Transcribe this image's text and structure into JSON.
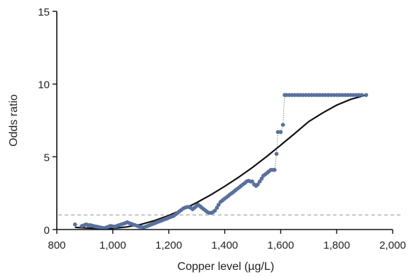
{
  "chart_data": {
    "type": "scatter",
    "title": "",
    "xlabel": "Copper level (µg/L)",
    "ylabel": "Odds ratio",
    "xlim": [
      800,
      2000
    ],
    "ylim": [
      0,
      15
    ],
    "x_ticks": [
      800,
      1000,
      1200,
      1400,
      1600,
      1800,
      2000
    ],
    "x_tick_labels": [
      "800",
      "1,000",
      "1,200",
      "1,400",
      "1,600",
      "1,800",
      "2,000"
    ],
    "y_ticks": [
      0,
      5,
      10,
      15
    ],
    "y_tick_labels": [
      "0",
      "5",
      "10",
      "15"
    ],
    "grid": false,
    "reference_line": {
      "y": 1,
      "style": "dashed",
      "color": "#b8b8b8"
    },
    "colors": {
      "points": "#5670a0",
      "fit": "#111111",
      "axis": "#111111"
    },
    "series": [
      {
        "type": "scatter",
        "points": [
          [
            865,
            0.35
          ],
          [
            890,
            0.25
          ],
          [
            898,
            0.3
          ],
          [
            905,
            0.35
          ],
          [
            912,
            0.3
          ],
          [
            918,
            0.3
          ],
          [
            924,
            0.28
          ],
          [
            930,
            0.25
          ],
          [
            936,
            0.22
          ],
          [
            942,
            0.2
          ],
          [
            948,
            0.18
          ],
          [
            955,
            0.15
          ],
          [
            962,
            0.12
          ],
          [
            970,
            0.1
          ],
          [
            978,
            0.15
          ],
          [
            985,
            0.2
          ],
          [
            992,
            0.25
          ],
          [
            1000,
            0.22
          ],
          [
            1008,
            0.2
          ],
          [
            1015,
            0.25
          ],
          [
            1022,
            0.3
          ],
          [
            1030,
            0.35
          ],
          [
            1038,
            0.4
          ],
          [
            1045,
            0.45
          ],
          [
            1052,
            0.5
          ],
          [
            1058,
            0.45
          ],
          [
            1065,
            0.4
          ],
          [
            1072,
            0.35
          ],
          [
            1080,
            0.3
          ],
          [
            1088,
            0.25
          ],
          [
            1095,
            0.2
          ],
          [
            1102,
            0.18
          ],
          [
            1110,
            0.15
          ],
          [
            1118,
            0.2
          ],
          [
            1125,
            0.25
          ],
          [
            1132,
            0.3
          ],
          [
            1138,
            0.35
          ],
          [
            1145,
            0.4
          ],
          [
            1152,
            0.45
          ],
          [
            1158,
            0.5
          ],
          [
            1165,
            0.55
          ],
          [
            1172,
            0.6
          ],
          [
            1178,
            0.65
          ],
          [
            1185,
            0.7
          ],
          [
            1192,
            0.75
          ],
          [
            1198,
            0.8
          ],
          [
            1205,
            0.85
          ],
          [
            1212,
            0.9
          ],
          [
            1218,
            0.95
          ],
          [
            1225,
            1.05
          ],
          [
            1232,
            1.15
          ],
          [
            1238,
            1.25
          ],
          [
            1245,
            1.35
          ],
          [
            1252,
            1.45
          ],
          [
            1258,
            1.5
          ],
          [
            1265,
            1.55
          ],
          [
            1272,
            1.55
          ],
          [
            1278,
            1.5
          ],
          [
            1285,
            1.4
          ],
          [
            1292,
            1.5
          ],
          [
            1298,
            1.6
          ],
          [
            1305,
            1.7
          ],
          [
            1312,
            1.6
          ],
          [
            1318,
            1.5
          ],
          [
            1325,
            1.4
          ],
          [
            1332,
            1.3
          ],
          [
            1338,
            1.2
          ],
          [
            1345,
            1.15
          ],
          [
            1352,
            1.15
          ],
          [
            1358,
            1.2
          ],
          [
            1365,
            1.3
          ],
          [
            1372,
            1.5
          ],
          [
            1378,
            1.7
          ],
          [
            1385,
            1.9
          ],
          [
            1392,
            2.0
          ],
          [
            1398,
            2.1
          ],
          [
            1405,
            2.2
          ],
          [
            1412,
            2.3
          ],
          [
            1418,
            2.4
          ],
          [
            1425,
            2.5
          ],
          [
            1432,
            2.6
          ],
          [
            1438,
            2.7
          ],
          [
            1445,
            2.8
          ],
          [
            1452,
            2.9
          ],
          [
            1458,
            3.0
          ],
          [
            1465,
            3.1
          ],
          [
            1472,
            3.2
          ],
          [
            1478,
            3.3
          ],
          [
            1485,
            3.35
          ],
          [
            1492,
            3.3
          ],
          [
            1498,
            3.3
          ],
          [
            1505,
            3.1
          ],
          [
            1512,
            3.0
          ],
          [
            1518,
            3.1
          ],
          [
            1525,
            3.3
          ],
          [
            1532,
            3.5
          ],
          [
            1538,
            3.7
          ],
          [
            1545,
            3.8
          ],
          [
            1552,
            3.9
          ],
          [
            1558,
            4.0
          ],
          [
            1565,
            4.1
          ],
          [
            1572,
            4.1
          ],
          [
            1578,
            4.1
          ],
          [
            1585,
            5.2
          ],
          [
            1590,
            6.7
          ],
          [
            1600,
            6.7
          ],
          [
            1608,
            7.2
          ],
          [
            1614,
            9.25
          ],
          [
            1620,
            9.25
          ],
          [
            1630,
            9.25
          ],
          [
            1640,
            9.25
          ],
          [
            1650,
            9.25
          ],
          [
            1660,
            9.25
          ],
          [
            1670,
            9.25
          ],
          [
            1680,
            9.25
          ],
          [
            1690,
            9.25
          ],
          [
            1700,
            9.25
          ],
          [
            1710,
            9.25
          ],
          [
            1720,
            9.25
          ],
          [
            1730,
            9.25
          ],
          [
            1740,
            9.25
          ],
          [
            1750,
            9.25
          ],
          [
            1760,
            9.25
          ],
          [
            1770,
            9.25
          ],
          [
            1780,
            9.25
          ],
          [
            1790,
            9.25
          ],
          [
            1800,
            9.25
          ],
          [
            1810,
            9.25
          ],
          [
            1820,
            9.25
          ],
          [
            1830,
            9.25
          ],
          [
            1840,
            9.25
          ],
          [
            1850,
            9.25
          ],
          [
            1860,
            9.25
          ],
          [
            1870,
            9.25
          ],
          [
            1880,
            9.25
          ],
          [
            1890,
            9.25
          ],
          [
            1905,
            9.25
          ]
        ]
      },
      {
        "type": "line",
        "style": "solid",
        "points": [
          [
            865,
            0.15
          ],
          [
            900,
            0.11
          ],
          [
            950,
            0.08
          ],
          [
            1000,
            0.08
          ],
          [
            1050,
            0.18
          ],
          [
            1100,
            0.35
          ],
          [
            1150,
            0.62
          ],
          [
            1200,
            0.97
          ],
          [
            1250,
            1.38
          ],
          [
            1300,
            1.85
          ],
          [
            1350,
            2.38
          ],
          [
            1400,
            2.97
          ],
          [
            1450,
            3.6
          ],
          [
            1500,
            4.28
          ],
          [
            1550,
            5.02
          ],
          [
            1600,
            5.8
          ],
          [
            1650,
            6.6
          ],
          [
            1700,
            7.42
          ],
          [
            1750,
            8.02
          ],
          [
            1800,
            8.55
          ],
          [
            1850,
            8.95
          ],
          [
            1905,
            9.25
          ]
        ]
      }
    ]
  }
}
